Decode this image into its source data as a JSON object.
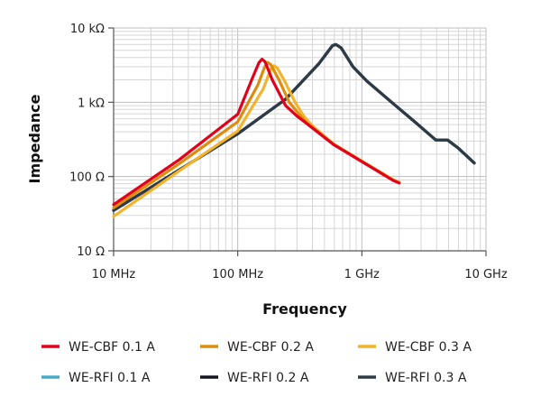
{
  "chart_data": {
    "type": "line",
    "title": "",
    "xlabel": "Frequency",
    "ylabel": "Impedance",
    "xscale": "log",
    "yscale": "log",
    "xlim_mhz": [
      10,
      10000
    ],
    "ylim_ohm": [
      10,
      10000
    ],
    "grid": true,
    "legend_placement": "bottom",
    "x_ticks": [
      {
        "value": 10,
        "label": "10 MHz"
      },
      {
        "value": 100,
        "label": "100 MHz"
      },
      {
        "value": 1000,
        "label": "1 GHz"
      },
      {
        "value": 10000,
        "label": "10 GHz"
      }
    ],
    "y_ticks": [
      {
        "value": 10000,
        "label": "10 kΩ"
      },
      {
        "value": 1000,
        "label": "1 kΩ"
      },
      {
        "value": 100,
        "label": "100 Ω"
      },
      {
        "value": 10,
        "label": "10 Ω"
      }
    ],
    "series": [
      {
        "name": "WE-CBF 0.1 A",
        "color": "#e3001b",
        "points": [
          [
            10,
            42
          ],
          [
            34,
            170
          ],
          [
            100,
            690
          ],
          [
            131,
            2100
          ],
          [
            148,
            3400
          ],
          [
            157,
            3800
          ],
          [
            166,
            3500
          ],
          [
            190,
            2000
          ],
          [
            243,
            900
          ],
          [
            300,
            650
          ],
          [
            358,
            520
          ],
          [
            591,
            270
          ],
          [
            1023,
            155
          ],
          [
            1800,
            88
          ],
          [
            2000,
            82
          ]
        ]
      },
      {
        "name": "WE-CBF 0.2 A",
        "color": "#dc8d0e",
        "points": [
          [
            10,
            38
          ],
          [
            34,
            150
          ],
          [
            100,
            545
          ],
          [
            145,
            1700
          ],
          [
            165,
            3000
          ],
          [
            175,
            3430
          ],
          [
            185,
            3200
          ],
          [
            215,
            2000
          ],
          [
            260,
            1000
          ],
          [
            310,
            700
          ],
          [
            358,
            530
          ],
          [
            591,
            272
          ],
          [
            1023,
            156
          ],
          [
            1800,
            88
          ],
          [
            2000,
            82
          ]
        ]
      },
      {
        "name": "WE-CBF 0.3 A",
        "color": "#f3b32a",
        "points": [
          [
            10,
            29
          ],
          [
            34,
            120
          ],
          [
            100,
            410
          ],
          [
            160,
            1500
          ],
          [
            185,
            2800
          ],
          [
            196,
            3110
          ],
          [
            208,
            2900
          ],
          [
            240,
            1900
          ],
          [
            290,
            1000
          ],
          [
            340,
            650
          ],
          [
            400,
            480
          ],
          [
            591,
            275
          ],
          [
            1023,
            158
          ],
          [
            1800,
            90
          ],
          [
            2000,
            84
          ]
        ]
      },
      {
        "name": "WE-RFI 0.1 A",
        "color": "#4aabc9",
        "points": [
          [
            10,
            35
          ],
          [
            100,
            376
          ],
          [
            243,
            1100
          ],
          [
            450,
            3300
          ],
          [
            580,
            5800
          ],
          [
            617,
            5990
          ],
          [
            680,
            5400
          ],
          [
            850,
            3000
          ],
          [
            1100,
            1920
          ],
          [
            1800,
            950
          ],
          [
            2670,
            545
          ],
          [
            3940,
            310
          ],
          [
            4900,
            310
          ],
          [
            6000,
            240
          ],
          [
            8040,
            152
          ]
        ]
      },
      {
        "name": "WE-RFI 0.2 A",
        "color": "#141420",
        "points": [
          [
            10,
            35
          ],
          [
            100,
            376
          ],
          [
            243,
            1100
          ],
          [
            450,
            3300
          ],
          [
            580,
            5800
          ],
          [
            617,
            5990
          ],
          [
            680,
            5400
          ],
          [
            850,
            3000
          ],
          [
            1100,
            1920
          ],
          [
            1800,
            950
          ],
          [
            2670,
            545
          ],
          [
            3940,
            310
          ],
          [
            4900,
            310
          ],
          [
            6000,
            240
          ],
          [
            8040,
            152
          ]
        ]
      },
      {
        "name": "WE-RFI 0.3 A",
        "color": "#2e3b46",
        "points": [
          [
            10,
            35
          ],
          [
            100,
            376
          ],
          [
            243,
            1100
          ],
          [
            450,
            3300
          ],
          [
            580,
            5800
          ],
          [
            617,
            5990
          ],
          [
            680,
            5400
          ],
          [
            850,
            3000
          ],
          [
            1100,
            1920
          ],
          [
            1800,
            950
          ],
          [
            2670,
            545
          ],
          [
            3940,
            310
          ],
          [
            4900,
            310
          ],
          [
            6000,
            240
          ],
          [
            8040,
            152
          ]
        ]
      }
    ]
  }
}
